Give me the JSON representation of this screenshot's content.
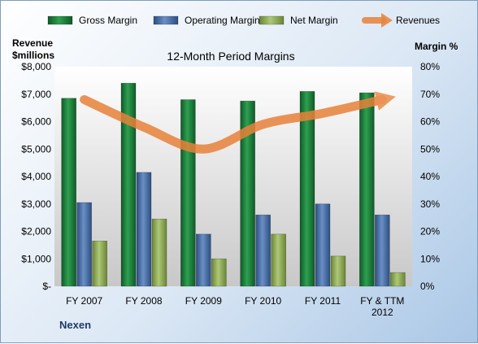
{
  "chart_data": {
    "type": "bar",
    "title": "12-Month Period Margins",
    "company": "Nexen",
    "left_axis": {
      "title_line1": "Revenue",
      "title_line2": "$millions",
      "range": [
        0,
        8000
      ],
      "ticks": [
        "$-",
        "$1,000",
        "$2,000",
        "$3,000",
        "$4,000",
        "$5,000",
        "$6,000",
        "$7,000",
        "$8,000"
      ]
    },
    "right_axis": {
      "title": "Margin %",
      "range": [
        0,
        80
      ],
      "ticks": [
        "0%",
        "10%",
        "20%",
        "30%",
        "40%",
        "50%",
        "60%",
        "70%",
        "80%"
      ]
    },
    "categories": [
      "FY 2007",
      "FY 2008",
      "FY 2009",
      "FY 2010",
      "FY 2011",
      "FY & TTM 2012"
    ],
    "grid": "none",
    "legend_placement": "top",
    "series": [
      {
        "name": "Gross Margin",
        "type": "bar",
        "axis": "right",
        "color": "#1e7a3c",
        "values": [
          68.5,
          74,
          68,
          67.5,
          71,
          70.5
        ]
      },
      {
        "name": "Operating Margin",
        "type": "bar",
        "axis": "right",
        "color": "#4a6fa5",
        "values": [
          30.5,
          41.5,
          19,
          26,
          30,
          26
        ]
      },
      {
        "name": "Net Margin",
        "type": "bar",
        "axis": "right",
        "color": "#8fab55",
        "values": [
          16.5,
          24.5,
          10,
          19,
          11,
          5
        ]
      },
      {
        "name": "Revenues",
        "type": "line",
        "axis": "left",
        "color": "#e8823a",
        "values": [
          6800,
          5800,
          5000,
          5900,
          6300,
          6800
        ]
      }
    ]
  }
}
